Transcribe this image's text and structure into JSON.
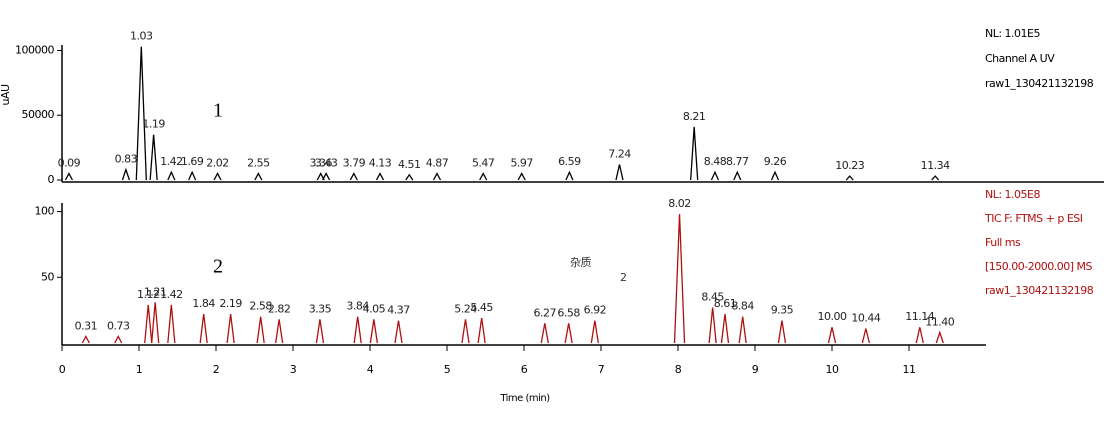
{
  "chart_data": [
    {
      "type": "line",
      "panel_label": "1",
      "y_label": "uAU",
      "color": "#000000",
      "info": [
        "NL: 1.01E5",
        "Channel A UV",
        "raw1_130421132198"
      ],
      "x": [
        0.09,
        0.83,
        1.03,
        1.19,
        1.42,
        1.69,
        2.02,
        2.55,
        3.36,
        3.43,
        3.79,
        4.13,
        4.51,
        4.87,
        5.47,
        5.97,
        6.59,
        7.24,
        8.21,
        8.48,
        8.77,
        9.26,
        10.23,
        11.34
      ],
      "values": [
        5000,
        8000,
        103000,
        35000,
        6000,
        6000,
        5000,
        5000,
        5000,
        5000,
        5000,
        5000,
        4000,
        5000,
        5000,
        5000,
        6000,
        12000,
        41000,
        6000,
        6000,
        6000,
        3000,
        3000
      ],
      "ylim": [
        0,
        105000
      ],
      "yticks": [
        0,
        50000,
        100000
      ],
      "xlim": [
        0,
        12
      ]
    },
    {
      "type": "line",
      "panel_label": "2",
      "color": "#b01010",
      "info": [
        "NL: 1.05E8",
        "TIC F: FTMS + p ESI",
        "Full ms",
        "[150.00-2000.00] MS",
        "raw1_130421132198"
      ],
      "annotations": [
        "杂质",
        "2"
      ],
      "x": [
        0.31,
        0.73,
        1.12,
        1.21,
        1.42,
        1.84,
        2.19,
        2.58,
        2.82,
        3.35,
        3.84,
        4.05,
        4.37,
        5.24,
        5.45,
        6.27,
        6.58,
        6.92,
        8.02,
        8.45,
        8.61,
        8.84,
        9.35,
        10.0,
        10.44,
        11.14,
        11.4
      ],
      "x_labels": [
        "0.31",
        "0.73",
        "1.12",
        "1.21",
        "1.42",
        "1.84",
        "2.19",
        "2.58",
        "2.82",
        "3.35",
        "3.84",
        "4.05",
        "4.37",
        "5.24",
        "5.45",
        "6.27",
        "6.58",
        "6.92",
        "8.02",
        "8.45",
        "8.61",
        "8.84",
        "9.35",
        "10.00",
        "10.44",
        "11.14",
        "11.40"
      ],
      "values": [
        5,
        5,
        29,
        31,
        29,
        22,
        22,
        20,
        18,
        18,
        20,
        18,
        17,
        18,
        19,
        15,
        15,
        17,
        98,
        27,
        22,
        20,
        17,
        12,
        11,
        12,
        8
      ],
      "ylim": [
        0,
        105
      ],
      "yticks": [
        50,
        100
      ],
      "xlim": [
        0,
        12
      ],
      "xticks": [
        0,
        1,
        2,
        3,
        4,
        5,
        6,
        7,
        8,
        9,
        10,
        11
      ],
      "xlabel": "Time (min)"
    }
  ]
}
